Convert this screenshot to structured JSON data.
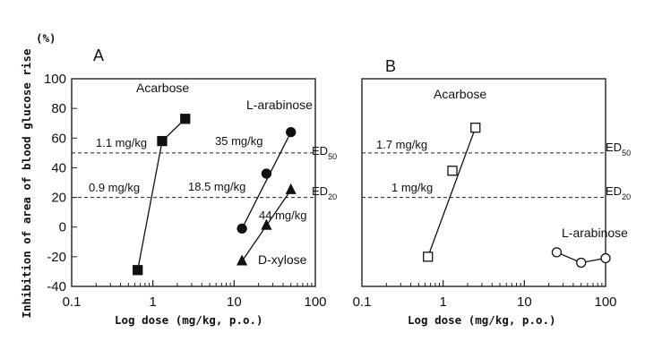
{
  "chart_data": [
    {
      "type": "scatter",
      "panel_label": "A",
      "xscale": "log",
      "xlim": [
        0.1,
        100
      ],
      "ylim": [
        -40,
        100
      ],
      "xticks": [
        "0.1",
        "1",
        "10",
        "100"
      ],
      "yticks": [
        "-40",
        "-20",
        "0",
        "20",
        "40",
        "60",
        "80",
        "100"
      ],
      "xlabel": "Log dose (mg/kg, p.o.)",
      "ylabel": "Inhibition of area of blood glucose rise",
      "yunit": "(%)",
      "reference_lines": [
        {
          "name": "ED50",
          "base": "ED",
          "sub": "50",
          "y": 50
        },
        {
          "name": "ED20",
          "base": "ED",
          "sub": "20",
          "y": 20
        }
      ],
      "series": [
        {
          "name": "Acarbose",
          "marker": "filled-square",
          "x": [
            0.65,
            1.3,
            2.5
          ],
          "y": [
            -29,
            58,
            73
          ],
          "fit": [
            [
              0.65,
              -29
            ],
            [
              1.3,
              58
            ]
          ]
        },
        {
          "name": "L-arabinose",
          "marker": "filled-circle",
          "x": [
            12.5,
            25,
            50
          ],
          "y": [
            -1,
            36,
            64
          ],
          "fit": [
            [
              12.5,
              -1
            ],
            [
              50,
              64
            ]
          ]
        },
        {
          "name": "D-xylose",
          "marker": "filled-triangle",
          "x": [
            12.5,
            25,
            50
          ],
          "y": [
            -23,
            1,
            25
          ],
          "fit": [
            [
              12.5,
              -23
            ],
            [
              50,
              25
            ]
          ]
        }
      ],
      "annotations": [
        "1.1 mg/kg",
        "0.9 mg/kg",
        "35 mg/kg",
        "18.5 mg/kg",
        "44 mg/kg"
      ]
    },
    {
      "type": "scatter",
      "panel_label": "B",
      "xscale": "log",
      "xlim": [
        0.1,
        100
      ],
      "ylim": [
        -40,
        100
      ],
      "xticks": [
        "0.1",
        "1",
        "10",
        "100"
      ],
      "xlabel": "Log dose (mg/kg, p.o.)",
      "reference_lines": [
        {
          "name": "ED50",
          "base": "ED",
          "sub": "50",
          "y": 50
        },
        {
          "name": "ED20",
          "base": "ED",
          "sub": "20",
          "y": 20
        }
      ],
      "series": [
        {
          "name": "Acarbose",
          "marker": "open-square",
          "x": [
            0.65,
            1.3,
            2.5
          ],
          "y": [
            -20,
            38,
            67
          ],
          "fit": [
            [
              0.65,
              -20
            ],
            [
              2.5,
              67
            ]
          ]
        },
        {
          "name": "L-arabinose",
          "marker": "open-circle",
          "x": [
            25,
            50,
            100
          ],
          "y": [
            -17,
            -24,
            -21
          ],
          "fit": "connect"
        }
      ],
      "annotations": [
        "1.7 mg/kg",
        "1 mg/kg"
      ]
    }
  ]
}
